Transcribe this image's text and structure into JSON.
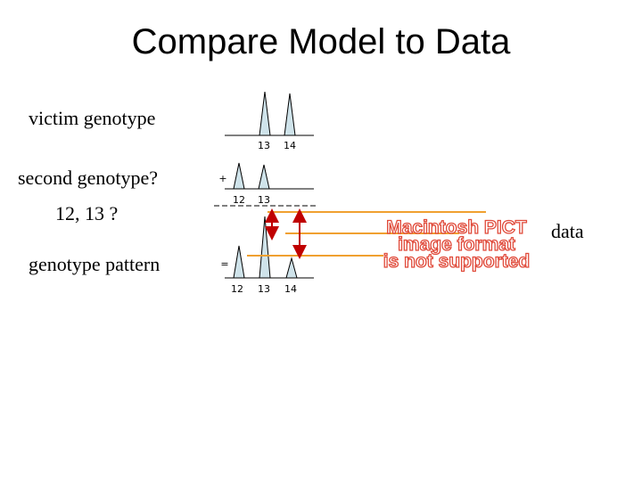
{
  "header": {
    "title": "Compare Model to Data"
  },
  "labels": {
    "victim": "victim genotype",
    "second": "second genotype?",
    "alleles": "12, 13 ?",
    "pattern": "genotype pattern",
    "data": "data"
  },
  "victim_row": {
    "alleles": [
      "13",
      "14"
    ]
  },
  "second_row": {
    "operator": "+",
    "alleles": [
      "12",
      "13"
    ]
  },
  "pattern_row": {
    "operator": "=",
    "alleles": [
      "12",
      "13",
      "14"
    ]
  },
  "image_placeholder": [
    "Macintosh PICT",
    "image format",
    "is not supported"
  ]
}
